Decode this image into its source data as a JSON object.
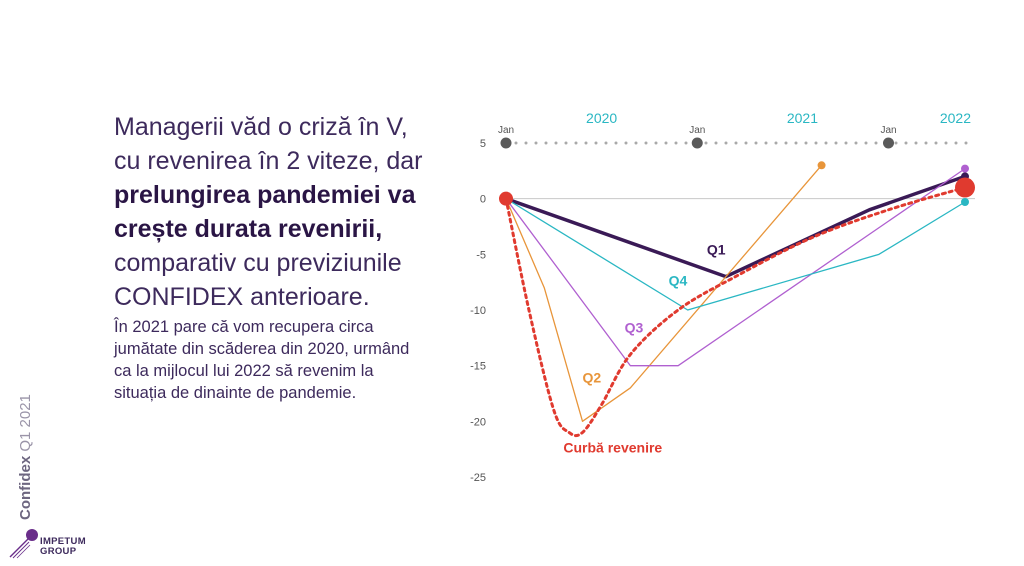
{
  "headline": {
    "line1": "Managerii văd o criză în V,",
    "line2": "cu revenirea în 2 viteze, dar",
    "bold1": "prelungirea pandemiei va",
    "bold2": "crește durata revenirii,",
    "line5": "comparativ cu previziunile",
    "line6": "CONFIDEX anterioare."
  },
  "body_text": {
    "line1": "În 2021 pare că vom recupera circa",
    "line2": "jumătate din scăderea din 2020, urmând",
    "line3": "ca la mijlocul lui 2022 să revenim la",
    "line4": "situația de dinainte de pandemie."
  },
  "side_label": {
    "brand": "Confidex",
    "period": "Q1 2021"
  },
  "logo": {
    "line1": "IMPETUM",
    "line2": "GROUP"
  },
  "chart_data": {
    "type": "line",
    "ylim": [
      -25,
      5
    ],
    "yticks": [
      5,
      0,
      -5,
      -10,
      -15,
      -20,
      -25
    ],
    "xlim": [
      0,
      24
    ],
    "year_labels": [
      {
        "x": 5,
        "label": "2020"
      },
      {
        "x": 15.5,
        "label": "2021"
      },
      {
        "x": 23.5,
        "label": "2022"
      }
    ],
    "jan_markers": [
      {
        "x": 0,
        "label": "Jan"
      },
      {
        "x": 10,
        "label": "Jan"
      },
      {
        "x": 20,
        "label": "Jan"
      }
    ],
    "series": [
      {
        "name": "Q1",
        "color": "#3a1a56",
        "width": 3.5,
        "dash": "",
        "x": [
          0,
          11.5,
          19,
          24
        ],
        "y": [
          0,
          -7,
          -1,
          2
        ],
        "end_dot": true,
        "label_x": 10.5,
        "label_y": -5
      },
      {
        "name": "Q2",
        "color": "#e8953a",
        "width": 1.3,
        "dash": "",
        "x": [
          0,
          2,
          4,
          6.5,
          16.5
        ],
        "y": [
          0,
          -8,
          -20,
          -17,
          3
        ],
        "end_dot": true,
        "label_x": 4,
        "label_y": -16.5
      },
      {
        "name": "Q3",
        "color": "#b060d0",
        "width": 1.3,
        "dash": "",
        "x": [
          0,
          6.5,
          9,
          24
        ],
        "y": [
          0,
          -15,
          -15,
          2.7
        ],
        "end_dot": true,
        "label_x": 6.2,
        "label_y": -12
      },
      {
        "name": "Q4",
        "color": "#2ab7c3",
        "width": 1.3,
        "dash": "",
        "x": [
          0,
          9.5,
          19.5,
          24
        ],
        "y": [
          0,
          -10,
          -5,
          -0.3
        ],
        "end_dot": true,
        "label_x": 8.5,
        "label_y": -7.8
      },
      {
        "name": "Curbă revenire",
        "color": "#e03a2f",
        "width": 3,
        "dash": "3 4",
        "x": [
          0,
          1.2,
          2.5,
          3.3,
          4,
          5,
          6.5,
          9,
          12,
          16,
          20,
          24
        ],
        "y": [
          0,
          -10,
          -19,
          -21,
          -21,
          -18.5,
          -14,
          -10,
          -7,
          -3.5,
          -1,
          1
        ],
        "end_dot": true,
        "label_x": 3,
        "label_y": -22.8
      }
    ]
  }
}
